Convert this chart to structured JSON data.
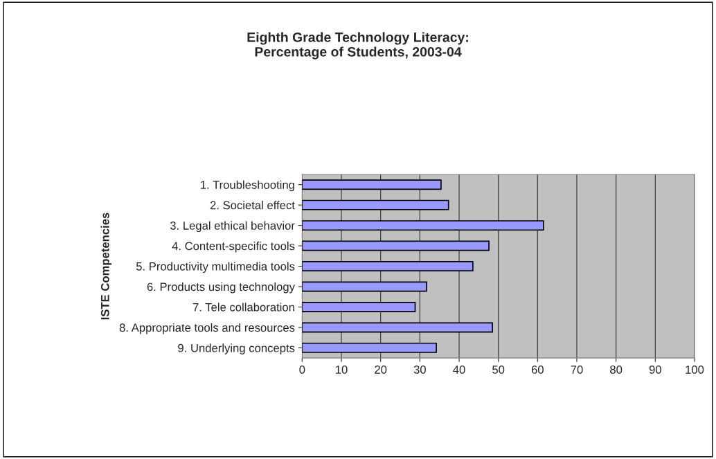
{
  "chart_data": {
    "type": "bar",
    "orientation": "horizontal",
    "title": "Eighth Grade Technology Literacy:\nPercentage of Students, 2003-04",
    "ylabel": "ISTE Competencies",
    "categories": [
      "1. Troubleshooting",
      "2. Societal effect",
      "3. Legal ethical behavior",
      "4. Content-specific tools",
      "5. Productivity multimedia tools",
      "6. Products using technology",
      "7. Tele collaboration",
      "8. Appropriate tools and resources",
      "9. Underlying concepts"
    ],
    "values": [
      35.4,
      37.3,
      61.5,
      47.6,
      43.5,
      31.7,
      28.8,
      48.5,
      34.2
    ],
    "color": "#9999ff",
    "xlim": [
      0,
      100
    ],
    "xticks": [
      0,
      10,
      20,
      30,
      40,
      50,
      60,
      70,
      80,
      90,
      100
    ],
    "grid": "x",
    "legend": false
  }
}
